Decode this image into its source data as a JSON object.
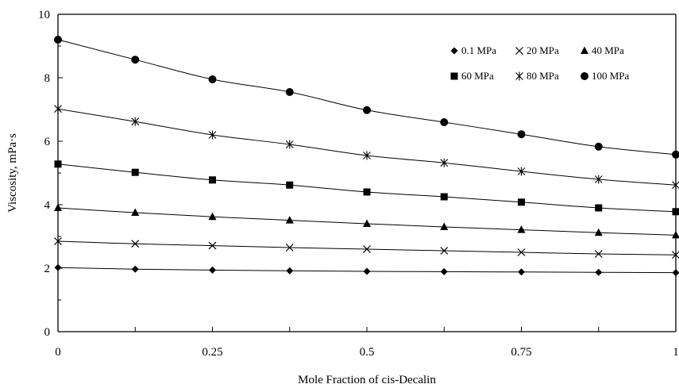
{
  "chart_data": {
    "type": "line",
    "xlabel": "Mole Fraction of cis-Decalin",
    "ylabel": "Viscosity,  mPa·s",
    "xlim": [
      0,
      1
    ],
    "ylim": [
      0,
      10
    ],
    "xticks": [
      "0",
      "0.25",
      "0.5",
      "0.75",
      "1"
    ],
    "yticks": [
      "0",
      "2",
      "4",
      "6",
      "8",
      "10"
    ],
    "grid": false,
    "legend_position": "top-right",
    "x": [
      0,
      0.125,
      0.25,
      0.375,
      0.5,
      0.625,
      0.75,
      0.875,
      1
    ],
    "series": [
      {
        "name": "0.1 MPa",
        "marker": "diamond",
        "values": [
          2.02,
          1.97,
          1.94,
          1.92,
          1.9,
          1.89,
          1.88,
          1.87,
          1.86
        ]
      },
      {
        "name": "20 MPa",
        "marker": "x",
        "values": [
          2.85,
          2.77,
          2.71,
          2.65,
          2.6,
          2.55,
          2.5,
          2.45,
          2.42
        ]
      },
      {
        "name": "40 MPa",
        "marker": "triangle",
        "values": [
          3.9,
          3.75,
          3.62,
          3.51,
          3.4,
          3.3,
          3.21,
          3.12,
          3.04
        ]
      },
      {
        "name": "60 MPa",
        "marker": "square",
        "values": [
          5.28,
          5.02,
          4.78,
          4.62,
          4.4,
          4.25,
          4.08,
          3.9,
          3.78
        ]
      },
      {
        "name": "80 MPa",
        "marker": "star",
        "values": [
          7.02,
          6.62,
          6.2,
          5.9,
          5.55,
          5.32,
          5.05,
          4.8,
          4.62
        ]
      },
      {
        "name": "100 MPa",
        "marker": "circle",
        "values": [
          9.2,
          8.57,
          7.95,
          7.55,
          6.98,
          6.6,
          6.22,
          5.83,
          5.58
        ]
      }
    ]
  }
}
